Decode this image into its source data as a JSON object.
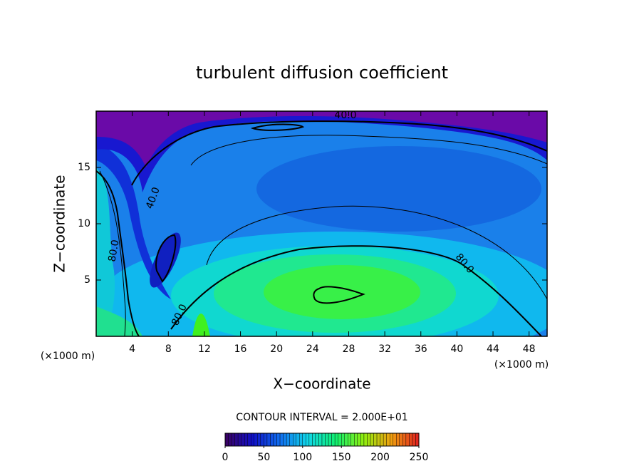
{
  "chart_data": {
    "type": "contour",
    "title": "turbulent diffusion coefficient",
    "xlabel": "X−coordinate",
    "ylabel": "Z−coordinate",
    "x_unit_label": "(×1000 m)",
    "xlim": [
      0,
      50
    ],
    "xticks": [
      4,
      8,
      12,
      16,
      20,
      24,
      28,
      32,
      36,
      40,
      44,
      48
    ],
    "ylim": [
      0,
      20
    ],
    "yticks": [
      5,
      10,
      15
    ],
    "contour_levels": [
      {
        "value": 40,
        "label": "40.0"
      },
      {
        "value": 80,
        "label": "80.0"
      }
    ],
    "contour_interval_label": "CONTOUR INTERVAL = 2.000E+01",
    "colorbar": {
      "lim": [
        0,
        250
      ],
      "ticks": [
        0,
        50,
        100,
        150,
        200,
        250
      ],
      "colors": [
        "#3a0060",
        "#1010c8",
        "#1070f0",
        "#10d8e8",
        "#10f070",
        "#90f010",
        "#f0a010",
        "#e02020"
      ]
    }
  }
}
